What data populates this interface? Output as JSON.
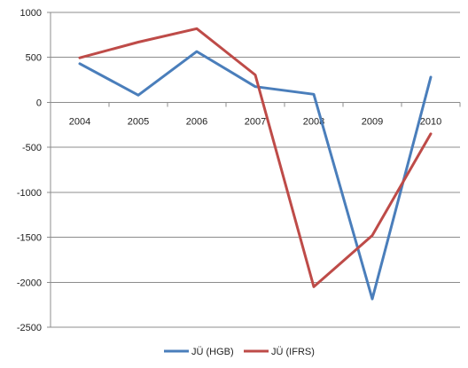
{
  "chart_data": {
    "type": "line",
    "title": "",
    "xlabel": "",
    "ylabel": "",
    "categories": [
      "2004",
      "2005",
      "2006",
      "2007",
      "2008",
      "2009",
      "2010"
    ],
    "ylim": [
      -2500,
      1000
    ],
    "y_ticks": [
      1000,
      500,
      0,
      -500,
      -1000,
      -1500,
      -2000,
      -2500
    ],
    "grid": true,
    "legend_position": "bottom",
    "series": [
      {
        "name": "JÜ (HGB)",
        "color": "#4a7ebb",
        "values": [
          430,
          80,
          565,
          175,
          90,
          -2185,
          280
        ]
      },
      {
        "name": "JÜ (IFRS)",
        "color": "#be4b48",
        "values": [
          495,
          670,
          820,
          305,
          -2050,
          -1480,
          -350
        ]
      }
    ]
  }
}
